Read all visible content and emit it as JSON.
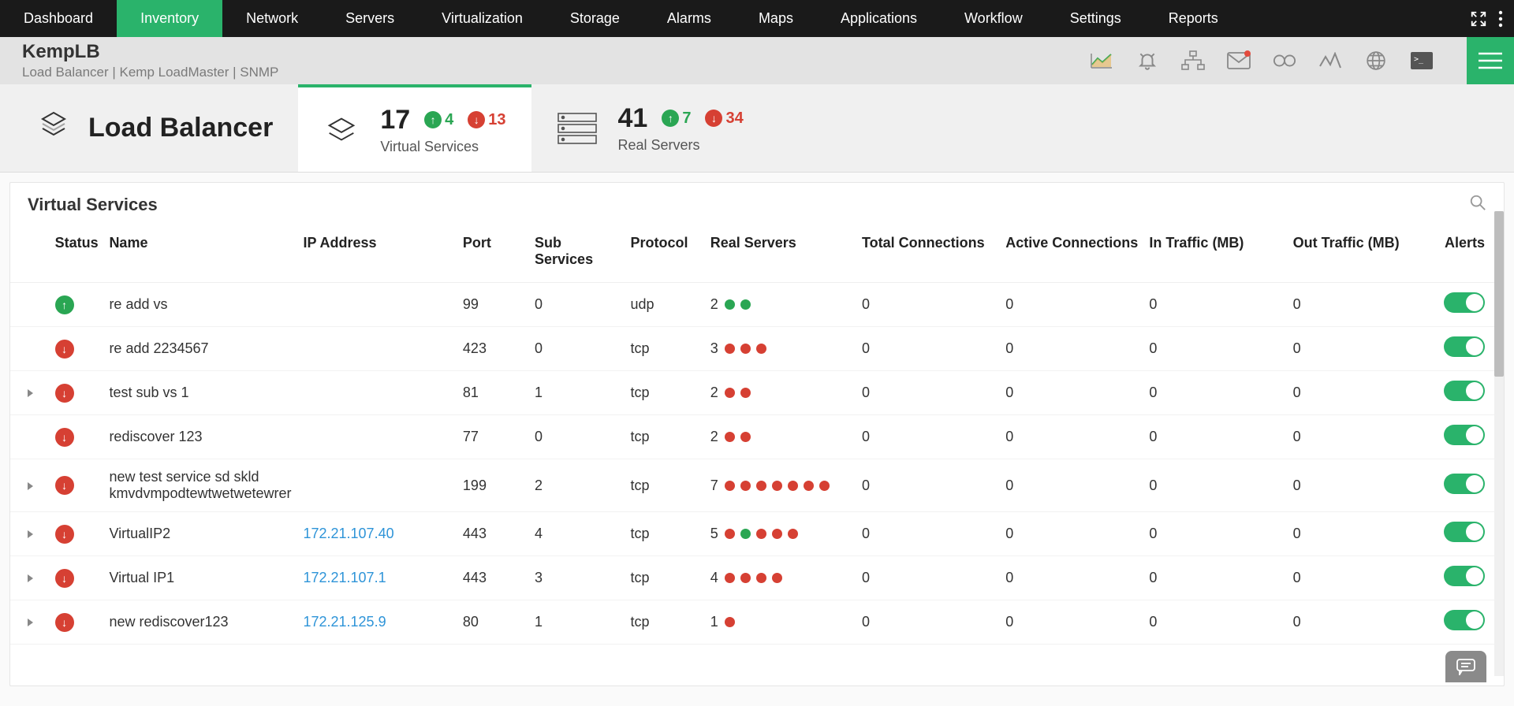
{
  "colors": {
    "accent": "#2ab36b",
    "up": "#2aa653",
    "down": "#d64033",
    "link": "#2e94d8",
    "nav_bg": "#1a1a1a"
  },
  "topnav": {
    "items": [
      "Dashboard",
      "Inventory",
      "Network",
      "Servers",
      "Virtualization",
      "Storage",
      "Alarms",
      "Maps",
      "Applications",
      "Workflow",
      "Settings",
      "Reports"
    ],
    "active_index": 1
  },
  "subheader": {
    "title": "KempLB",
    "meta": "Load Balancer  | Kemp LoadMaster  | SNMP",
    "icons": [
      "chart-area-icon",
      "bell-icon",
      "topology-icon",
      "mail-icon",
      "loop-icon",
      "activity-icon",
      "globe-icon",
      "terminal-icon"
    ]
  },
  "summary": {
    "title": "Load Balancer",
    "virtual_services": {
      "count": "17",
      "up": "4",
      "down": "13",
      "label": "Virtual Services"
    },
    "real_servers": {
      "count": "41",
      "up": "7",
      "down": "34",
      "label": "Real Servers"
    }
  },
  "table": {
    "title": "Virtual Services",
    "columns": [
      "Status",
      "Name",
      "IP Address",
      "Port",
      "Sub Services",
      "Protocol",
      "Real Servers",
      "Total Connections",
      "Active Connections",
      "In Traffic (MB)",
      "Out Traffic (MB)",
      "Alerts"
    ],
    "rows": [
      {
        "expandable": false,
        "status": "up",
        "name": "re add vs",
        "ip": "",
        "port": "99",
        "sub": "0",
        "proto": "udp",
        "rs_count": "2",
        "rs_dots": [
          "g",
          "g"
        ],
        "tc": "0",
        "ac": "0",
        "in": "0",
        "out": "0",
        "alert_on": true
      },
      {
        "expandable": false,
        "status": "down",
        "name": "re add 2234567",
        "ip": "",
        "port": "423",
        "sub": "0",
        "proto": "tcp",
        "rs_count": "3",
        "rs_dots": [
          "r",
          "r",
          "r"
        ],
        "tc": "0",
        "ac": "0",
        "in": "0",
        "out": "0",
        "alert_on": true
      },
      {
        "expandable": true,
        "status": "down",
        "name": "test sub vs 1",
        "ip": "",
        "port": "81",
        "sub": "1",
        "proto": "tcp",
        "rs_count": "2",
        "rs_dots": [
          "r",
          "r"
        ],
        "tc": "0",
        "ac": "0",
        "in": "0",
        "out": "0",
        "alert_on": true
      },
      {
        "expandable": false,
        "status": "down",
        "name": "rediscover 123",
        "ip": "",
        "port": "77",
        "sub": "0",
        "proto": "tcp",
        "rs_count": "2",
        "rs_dots": [
          "r",
          "r"
        ],
        "tc": "0",
        "ac": "0",
        "in": "0",
        "out": "0",
        "alert_on": true
      },
      {
        "expandable": true,
        "status": "down",
        "name": "new test service sd skld kmvdvmpodtewtwetwetewrer",
        "ip": "",
        "port": "199",
        "sub": "2",
        "proto": "tcp",
        "rs_count": "7",
        "rs_dots": [
          "r",
          "r",
          "r",
          "r",
          "r",
          "r",
          "r"
        ],
        "tc": "0",
        "ac": "0",
        "in": "0",
        "out": "0",
        "alert_on": true
      },
      {
        "expandable": true,
        "status": "down",
        "name": "VirtualIP2",
        "ip": "172.21.107.40",
        "port": "443",
        "sub": "4",
        "proto": "tcp",
        "rs_count": "5",
        "rs_dots": [
          "r",
          "g",
          "r",
          "r",
          "r"
        ],
        "tc": "0",
        "ac": "0",
        "in": "0",
        "out": "0",
        "alert_on": true
      },
      {
        "expandable": true,
        "status": "down",
        "name": "Virtual IP1",
        "ip": "172.21.107.1",
        "port": "443",
        "sub": "3",
        "proto": "tcp",
        "rs_count": "4",
        "rs_dots": [
          "r",
          "r",
          "r",
          "r"
        ],
        "tc": "0",
        "ac": "0",
        "in": "0",
        "out": "0",
        "alert_on": true
      },
      {
        "expandable": true,
        "status": "down",
        "name": "new rediscover123",
        "ip": "172.21.125.9",
        "port": "80",
        "sub": "1",
        "proto": "tcp",
        "rs_count": "1",
        "rs_dots": [
          "r"
        ],
        "tc": "0",
        "ac": "0",
        "in": "0",
        "out": "0",
        "alert_on": true
      }
    ]
  }
}
